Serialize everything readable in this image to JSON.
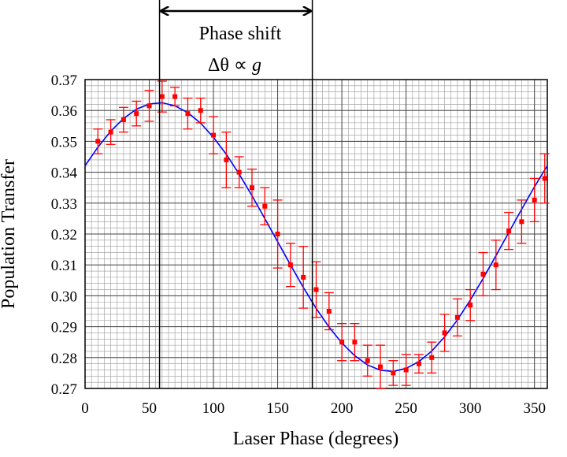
{
  "chart_data": {
    "type": "scatter",
    "xlabel": "Laser Phase (degrees)",
    "ylabel": "Population Transfer",
    "xlim": [
      0,
      360
    ],
    "ylim": [
      0.27,
      0.37
    ],
    "xticks": [
      0,
      50,
      100,
      150,
      200,
      250,
      300,
      350
    ],
    "yticks": [
      0.27,
      0.28,
      0.29,
      {
        "value": 0.3,
        "label": "0.30"
      },
      0.31,
      0.32,
      0.33,
      0.34,
      0.35,
      0.36,
      0.37
    ],
    "grid": true,
    "minor_grid_step": {
      "x": 5,
      "y": 0.002
    },
    "series": [
      {
        "kind": "points",
        "color": "#ff0000",
        "x": [
          10,
          20,
          30,
          40,
          50,
          60,
          70,
          80,
          90,
          100,
          110,
          120,
          130,
          140,
          150,
          160,
          170,
          180,
          190,
          200,
          210,
          220,
          230,
          240,
          250,
          260,
          270,
          280,
          290,
          300,
          310,
          320,
          330,
          340,
          350,
          358
        ],
        "values": [
          0.35,
          0.353,
          0.357,
          0.359,
          0.3615,
          0.3645,
          0.3645,
          0.359,
          0.36,
          0.352,
          0.344,
          0.34,
          0.335,
          0.329,
          0.32,
          0.31,
          0.306,
          0.302,
          0.295,
          0.285,
          0.285,
          0.279,
          0.277,
          0.275,
          0.276,
          0.278,
          0.28,
          0.288,
          0.293,
          0.297,
          0.307,
          0.31,
          0.321,
          0.324,
          0.331,
          0.338
        ],
        "errors": [
          0.004,
          0.004,
          0.004,
          0.004,
          0.005,
          0.005,
          0.003,
          0.005,
          0.004,
          0.006,
          0.009,
          0.005,
          0.006,
          0.006,
          0.011,
          0.007,
          0.01,
          0.009,
          0.006,
          0.006,
          0.006,
          0.005,
          0.007,
          0.004,
          0.005,
          0.003,
          0.005,
          0.006,
          0.006,
          0.005,
          0.007,
          0.008,
          0.006,
          0.007,
          0.007,
          0.008
        ]
      },
      {
        "kind": "fit",
        "color": "#0000ff",
        "x": [
          0,
          10,
          20,
          30,
          40,
          50,
          60,
          70,
          80,
          90,
          100,
          110,
          120,
          130,
          140,
          150,
          160,
          170,
          180,
          190,
          200,
          210,
          220,
          230,
          240,
          250,
          260,
          270,
          280,
          290,
          300,
          310,
          320,
          330,
          340,
          350,
          360
        ],
        "values": [
          0.3421,
          0.3481,
          0.3533,
          0.3574,
          0.3604,
          0.3621,
          0.3625,
          0.3615,
          0.3593,
          0.3559,
          0.3513,
          0.3458,
          0.3394,
          0.3324,
          0.325,
          0.3175,
          0.31,
          0.3027,
          0.2959,
          0.2899,
          0.2847,
          0.2806,
          0.2776,
          0.2759,
          0.2755,
          0.2765,
          0.2787,
          0.2821,
          0.2867,
          0.2922,
          0.2986,
          0.3056,
          0.313,
          0.3205,
          0.328,
          0.3353,
          0.3421
        ]
      }
    ],
    "marker_lines_x": [
      58,
      177
    ],
    "annotation": {
      "line1": "Phase shift",
      "line2": "Δθ ∝",
      "variable": "g"
    }
  }
}
